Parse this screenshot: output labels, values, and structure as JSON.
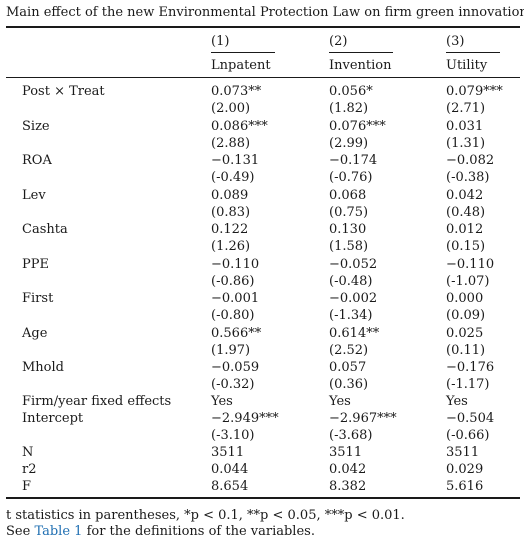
{
  "caption": "Main effect of the new Environmental Protection Law on firm green innovation.",
  "columns": [
    {
      "number": "(1)",
      "name": "Lnpatent"
    },
    {
      "number": "(2)",
      "name": "Invention"
    },
    {
      "number": "(3)",
      "name": "Utility"
    }
  ],
  "rows": [
    {
      "label": "Post × Treat",
      "values": [
        "0.073**",
        "0.056*",
        "0.079***"
      ]
    },
    {
      "label": "",
      "values": [
        "(2.00)",
        "(1.82)",
        "(2.71)"
      ]
    },
    {
      "label": "Size",
      "values": [
        "0.086***",
        "0.076***",
        "0.031"
      ]
    },
    {
      "label": "",
      "values": [
        "(2.88)",
        "(2.99)",
        "(1.31)"
      ]
    },
    {
      "label": "ROA",
      "values": [
        "−0.131",
        "−0.174",
        "−0.082"
      ]
    },
    {
      "label": "",
      "values": [
        "(-0.49)",
        "(-0.76)",
        "(-0.38)"
      ]
    },
    {
      "label": "Lev",
      "values": [
        "0.089",
        "0.068",
        "0.042"
      ]
    },
    {
      "label": "",
      "values": [
        "(0.83)",
        "(0.75)",
        "(0.48)"
      ]
    },
    {
      "label": "Cashta",
      "values": [
        "0.122",
        "0.130",
        "0.012"
      ]
    },
    {
      "label": "",
      "values": [
        "(1.26)",
        "(1.58)",
        "(0.15)"
      ]
    },
    {
      "label": "PPE",
      "values": [
        "−0.110",
        "−0.052",
        "−0.110"
      ]
    },
    {
      "label": "",
      "values": [
        "(-0.86)",
        "(-0.48)",
        "(-1.07)"
      ]
    },
    {
      "label": "First",
      "values": [
        "−0.001",
        "−0.002",
        "0.000"
      ]
    },
    {
      "label": "",
      "values": [
        "(-0.80)",
        "(-1.34)",
        "(0.09)"
      ]
    },
    {
      "label": "Age",
      "values": [
        "0.566**",
        "0.614**",
        "0.025"
      ]
    },
    {
      "label": "",
      "values": [
        "(1.97)",
        "(2.52)",
        "(0.11)"
      ]
    },
    {
      "label": "Mhold",
      "values": [
        "−0.059",
        "0.057",
        "−0.176"
      ]
    },
    {
      "label": "",
      "values": [
        "(-0.32)",
        "(0.36)",
        "(-1.17)"
      ]
    },
    {
      "label": "Firm/year fixed effects",
      "values": [
        "Yes",
        "Yes",
        "Yes"
      ]
    },
    {
      "label": "Intercept",
      "values": [
        "−2.949***",
        "−2.967***",
        "−0.504"
      ]
    },
    {
      "label": "",
      "values": [
        "(-3.10)",
        "(-3.68)",
        "(-0.66)"
      ]
    },
    {
      "label": "N",
      "values": [
        "3511",
        "3511",
        "3511"
      ]
    },
    {
      "label": "r2",
      "values": [
        "0.044",
        "0.042",
        "0.029"
      ]
    },
    {
      "label": "F",
      "values": [
        "8.654",
        "8.382",
        "5.616"
      ]
    }
  ],
  "footnotes": {
    "note1": "t statistics in parentheses, *p < 0.1, **p < 0.05, ***p < 0.01.",
    "note2_prefix": "See ",
    "note2_link": "Table 1",
    "note2_suffix": " for the definitions of the variables."
  },
  "colors": {
    "text": "#1a1a1a",
    "link": "#1f6fb2"
  }
}
